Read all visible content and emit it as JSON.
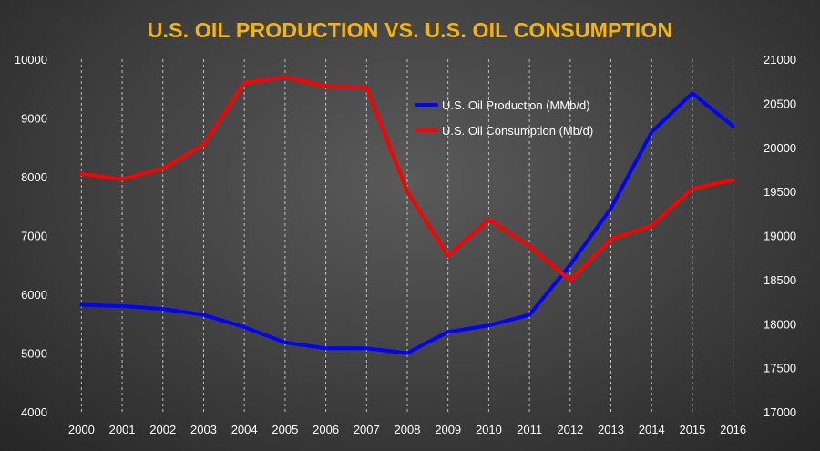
{
  "chart_data": {
    "type": "line",
    "title": "U.S. OIL PRODUCTION VS. U.S. OIL CONSUMPTION",
    "categories": [
      "2000",
      "2001",
      "2002",
      "2003",
      "2004",
      "2005",
      "2006",
      "2007",
      "2008",
      "2009",
      "2010",
      "2011",
      "2012",
      "2013",
      "2014",
      "2015",
      "2016"
    ],
    "y_left": {
      "min": 4000,
      "max": 10000,
      "ticks": [
        "4000",
        "5000",
        "6000",
        "7000",
        "8000",
        "9000",
        "10000"
      ]
    },
    "y_right": {
      "min": 17000,
      "max": 21000,
      "ticks": [
        "17000",
        "17500",
        "18000",
        "18500",
        "19000",
        "19500",
        "20000",
        "20500",
        "21000"
      ]
    },
    "series": [
      {
        "name": "U.S. Oil Production (MMb/d)",
        "axis": "left",
        "color": "#0000ff",
        "values": [
          5820,
          5800,
          5750,
          5650,
          5440,
          5180,
          5080,
          5080,
          5000,
          5360,
          5470,
          5650,
          6500,
          7460,
          8760,
          9420,
          8860
        ]
      },
      {
        "name": "U.S. Oil Consumption (Mb/d)",
        "axis": "right",
        "color": "#ff0000",
        "values": [
          19700,
          19640,
          19760,
          20030,
          20730,
          20800,
          20690,
          20680,
          19500,
          18770,
          19180,
          18880,
          18490,
          18960,
          19110,
          19530,
          19630
        ]
      }
    ],
    "legend": "top-right",
    "grid": "vertical-dashed"
  }
}
